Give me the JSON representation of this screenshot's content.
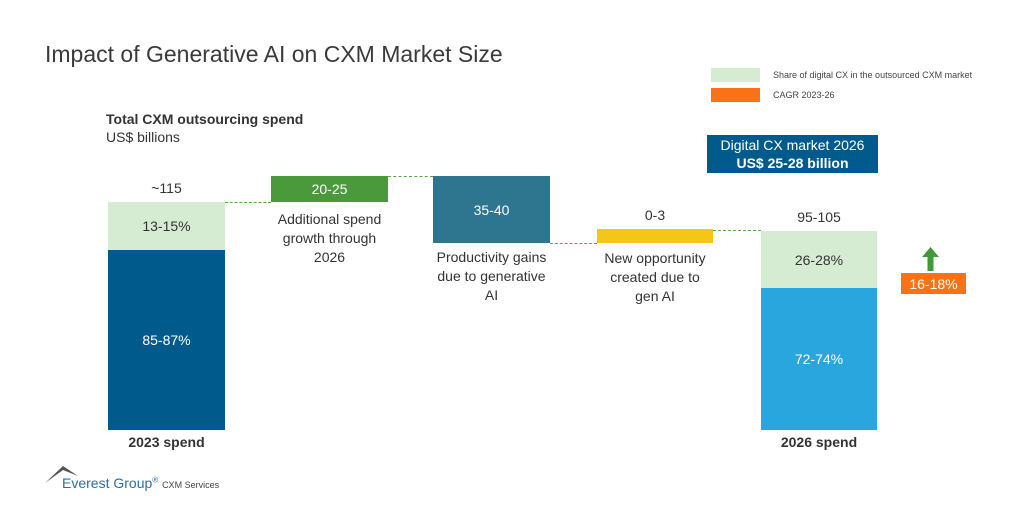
{
  "chart_data": {
    "type": "waterfall",
    "title": "Impact of Generative AI on CXM Market Size",
    "ylabel_title": "Total CXM outsourcing spend",
    "yunit": "US$ billions",
    "legend": [
      {
        "label": "Share of digital CX in the outsourced CXM market",
        "color": "#d5ecd2"
      },
      {
        "label": "CAGR 2023-26",
        "color": "#f97316"
      }
    ],
    "bars": [
      {
        "category": "2023 spend",
        "total_label": "~115",
        "segments": [
          {
            "label": "13-15%",
            "color": "#d5ecd2"
          },
          {
            "label": "85-87%",
            "color": "#005a8c"
          }
        ]
      },
      {
        "category": "Additional spend growth through 2026",
        "label": "20-25",
        "color": "#4a9a3c",
        "direction": "increase"
      },
      {
        "category": "Productivity gains due to generative AI",
        "label": "35-40",
        "color": "#2e7590",
        "direction": "decrease"
      },
      {
        "category": "New opportunity created due to gen AI",
        "label": "0-3",
        "color": "#f5c518",
        "direction": "increase"
      },
      {
        "category": "2026 spend",
        "total_label": "95-105",
        "segments": [
          {
            "label": "26-28%",
            "color": "#d5ecd2"
          },
          {
            "label": "72-74%",
            "color": "#29a6dd"
          }
        ]
      }
    ],
    "callout": {
      "line1": "Digital CX market 2026",
      "line2": "US$ 25-28 billion"
    },
    "cagr": {
      "label": "16-18%",
      "direction": "up"
    }
  },
  "footer": {
    "brand": "Everest Group",
    "reg": "®",
    "division": "CXM Services"
  }
}
